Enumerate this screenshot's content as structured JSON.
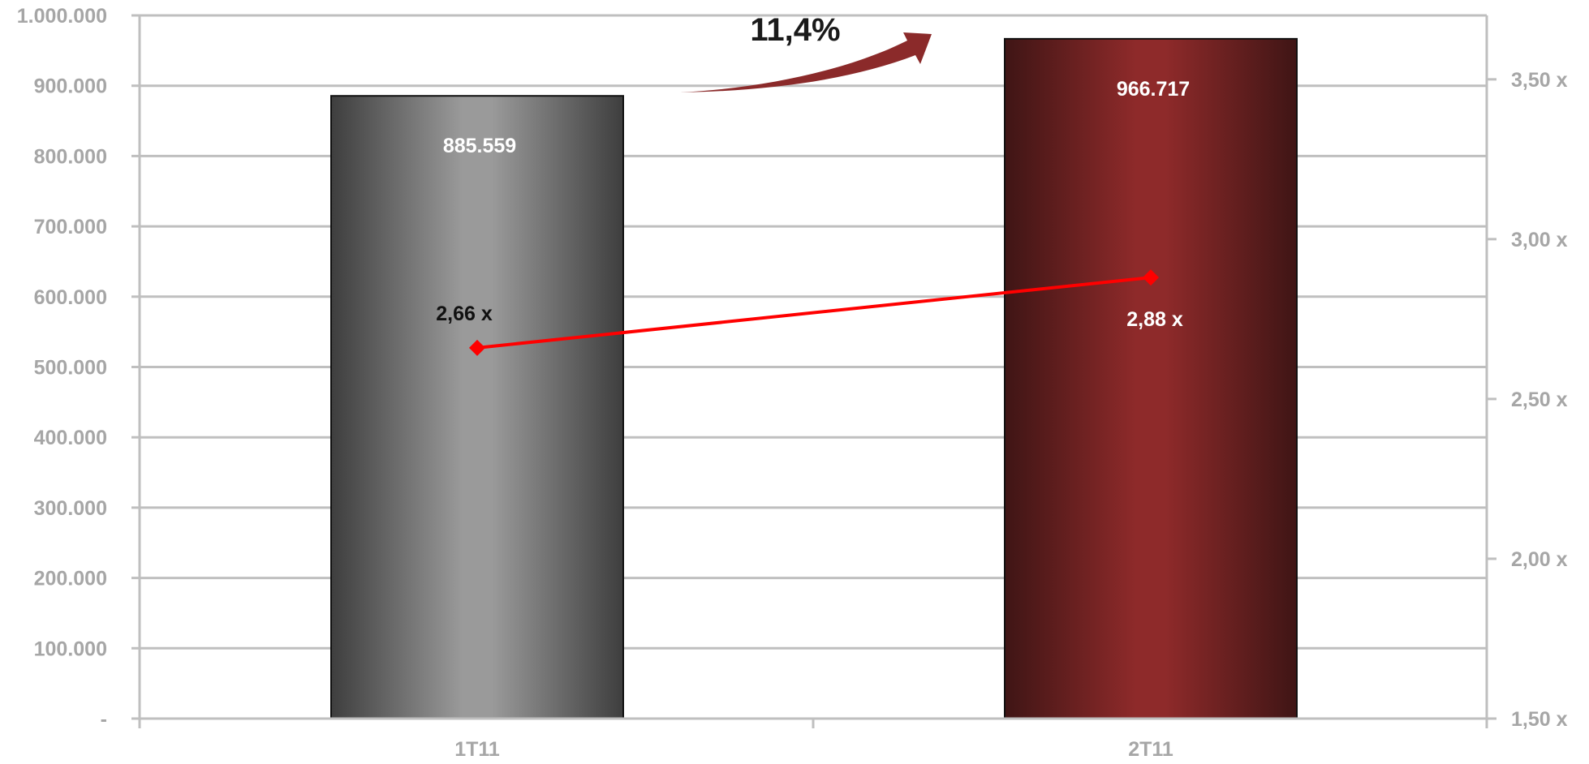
{
  "chart_data": {
    "type": "bar",
    "categories": [
      "1T11",
      "2T11"
    ],
    "series": [
      {
        "values": [
          885559,
          966717
        ],
        "value_labels": [
          "885.559",
          "966.717"
        ]
      },
      {
        "type": "line",
        "axis": "right",
        "values": [
          2.66,
          2.88
        ],
        "value_labels": [
          "2,66 x",
          "2,88 x"
        ]
      }
    ],
    "ylim": [
      0,
      1000000
    ],
    "y_ticks": [
      "-",
      "100.000",
      "200.000",
      "300.000",
      "400.000",
      "500.000",
      "600.000",
      "700.000",
      "800.000",
      "900.000",
      "1.000.000"
    ],
    "y2lim": [
      1.5,
      3.7
    ],
    "y2_ticks": [
      1.5,
      2.0,
      2.5,
      3.0,
      3.5
    ],
    "y2_tick_labels": [
      "1,50 x",
      "2,00 x",
      "2,50 x",
      "3,00 x",
      "3,50 x"
    ],
    "annotation": "11,4%",
    "grid": true,
    "colors": {
      "bar_1": "#8c8c8c",
      "bar_2": "#8b2a2a",
      "line": "#ff0000",
      "grid": "#bfbfbf",
      "axis_text": "#a6a6a6"
    }
  }
}
